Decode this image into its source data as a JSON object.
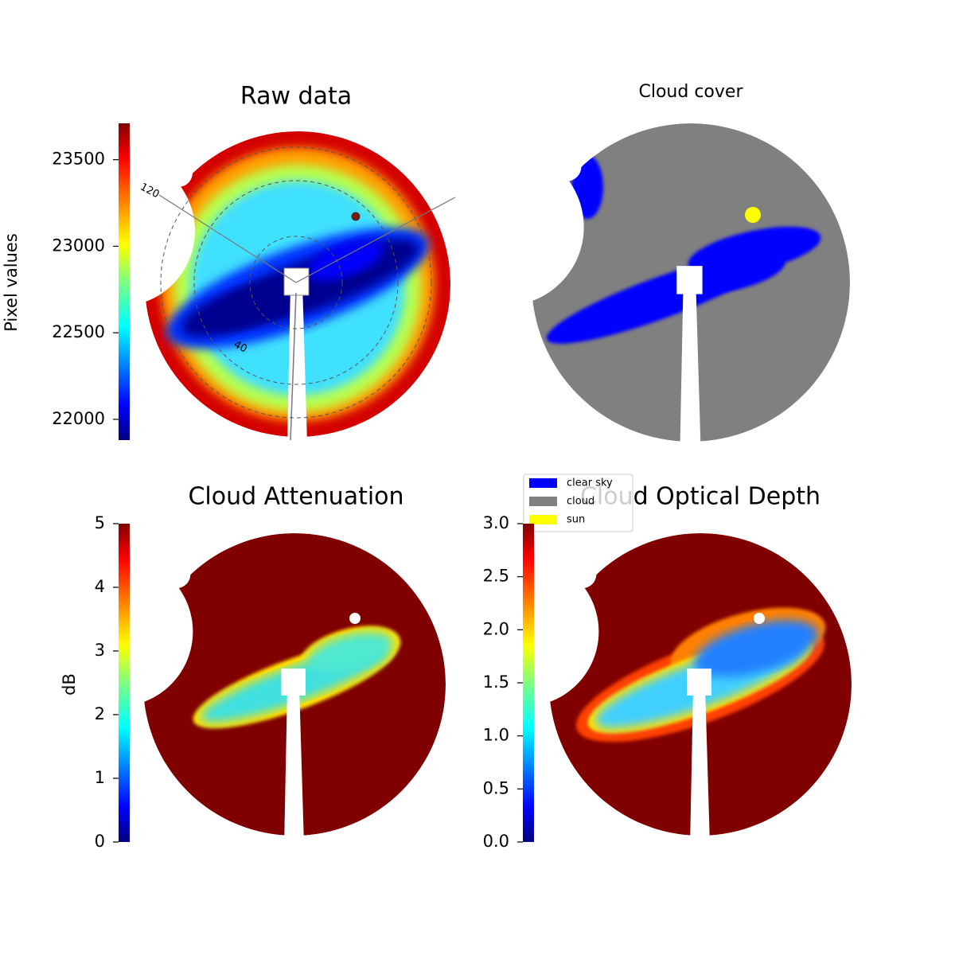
{
  "chart_data": [
    {
      "type": "image",
      "title": "Raw data",
      "ylabel": "Pixel values",
      "ylim": [
        21880,
        23710
      ],
      "yticks": [
        22000,
        22500,
        23000,
        23500
      ],
      "colormap": "jet",
      "annotations": [
        "120",
        "40"
      ]
    },
    {
      "type": "image",
      "title": "Cloud cover",
      "legend": [
        {
          "name": "clear sky",
          "color": "#0000ff"
        },
        {
          "name": "cloud",
          "color": "#808080"
        },
        {
          "name": "sun",
          "color": "#ffff00"
        }
      ]
    },
    {
      "type": "image",
      "title": "Cloud Attenuation",
      "ylabel": "dB",
      "ylim": [
        0,
        5
      ],
      "yticks": [
        0,
        1,
        2,
        3,
        4,
        5
      ],
      "colormap": "jet"
    },
    {
      "type": "image",
      "title": "Cloud Optical Depth",
      "ylim": [
        0,
        3
      ],
      "yticks": [
        {
          "value": 0,
          "label": "0.0"
        },
        0.5,
        {
          "value": 1,
          "label": "1.0"
        },
        1.5,
        {
          "value": 2,
          "label": "2.0"
        },
        2.5,
        {
          "value": 3,
          "label": "3.0"
        }
      ],
      "colormap": "jet"
    }
  ]
}
